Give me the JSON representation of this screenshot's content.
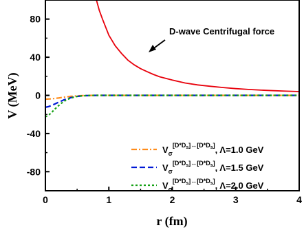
{
  "chart_data": {
    "type": "line",
    "xlabel": "r (fm)",
    "ylabel": "V (MeV)",
    "xlim": [
      0,
      4
    ],
    "ylim": [
      -100,
      100
    ],
    "x_ticks": [
      "0",
      "1",
      "2",
      "3",
      "4"
    ],
    "y_ticks": [
      "-80",
      "-40",
      "0",
      "40",
      "80"
    ],
    "y_tick_values": [
      -80,
      -40,
      0,
      40,
      80
    ],
    "grid": false,
    "legend_position": "bottom-right",
    "annotation": {
      "text": "D-wave Centrifugal force",
      "x": 1.6,
      "y": 47
    },
    "series": [
      {
        "name": "D-wave Centrifugal force",
        "color": "#e8000b",
        "dash": "solid",
        "x": [
          0.8,
          0.85,
          0.9,
          1.0,
          1.1,
          1.2,
          1.3,
          1.4,
          1.5,
          1.6,
          1.7,
          1.8,
          2.0,
          2.2,
          2.4,
          2.6,
          2.8,
          3.0,
          3.2,
          3.4,
          3.6,
          3.8,
          4.0
        ],
        "y": [
          101,
          89,
          80,
          63,
          52,
          44,
          37,
          32,
          28,
          25,
          22,
          19.5,
          16,
          13,
          11,
          9.5,
          8.2,
          7.1,
          6.2,
          5.5,
          4.9,
          4.4,
          4.0
        ]
      },
      {
        "name": "Λ=1.0 GeV",
        "legend_prefix": "V",
        "legend_sub": "σ",
        "legend_sup": "[D*D",
        "legend_sup_sub": "s",
        "legend_sup2": "]↔[D*D",
        "legend_sup2_sub": "s",
        "legend_sup_end": "]",
        "legend_suffix": ", Λ=1.0 GeV",
        "color": "#ff8c1a",
        "dash": "dashdot",
        "x": [
          0,
          0.1,
          0.2,
          0.3,
          0.4,
          0.5,
          0.6,
          0.7,
          0.8,
          1.0,
          1.5,
          2.0,
          3.0,
          4.0
        ],
        "y": [
          -4.0,
          -3.6,
          -2.8,
          -1.8,
          -1.0,
          -0.5,
          -0.2,
          -0.1,
          0.0,
          0.0,
          0.0,
          0.0,
          0.0,
          0.0
        ]
      },
      {
        "name": "Λ=1.5 GeV",
        "legend_prefix": "V",
        "legend_sub": "σ",
        "legend_sup": "[D*D",
        "legend_sup_sub": "s",
        "legend_sup2": "]↔[D*D",
        "legend_sup2_sub": "s",
        "legend_sup_end": "]",
        "legend_suffix": ", Λ=1.5 GeV",
        "color": "#0019d6",
        "dash": "dash",
        "x": [
          0,
          0.05,
          0.1,
          0.15,
          0.2,
          0.25,
          0.3,
          0.4,
          0.5,
          0.6,
          0.7,
          0.8,
          1.0,
          1.5,
          2.0,
          3.0,
          4.0
        ],
        "y": [
          -12.5,
          -11.8,
          -10.5,
          -9.0,
          -7.4,
          -5.9,
          -4.5,
          -2.4,
          -1.1,
          -0.4,
          -0.1,
          0.0,
          0.0,
          0.0,
          0.0,
          0.0,
          0.0
        ]
      },
      {
        "name": "Λ=2.0 GeV",
        "legend_prefix": "V",
        "legend_sub": "σ",
        "legend_sup": "[D*D",
        "legend_sup_sub": "s",
        "legend_sup2": "]↔[D*D",
        "legend_sup2_sub": "s",
        "legend_sup_end": "]",
        "legend_suffix": ", Λ=2.0 GeV",
        "color": "#14a014",
        "dash": "dot",
        "x": [
          0,
          0.05,
          0.1,
          0.15,
          0.2,
          0.25,
          0.3,
          0.35,
          0.4,
          0.5,
          0.6,
          0.7,
          0.8,
          1.0,
          1.5,
          2.0,
          3.0,
          4.0
        ],
        "y": [
          -22.5,
          -20.8,
          -17.8,
          -14.4,
          -11.2,
          -8.3,
          -6.0,
          -4.2,
          -2.8,
          -1.1,
          -0.4,
          -0.1,
          0.0,
          0.0,
          0.0,
          0.0,
          0.0,
          0.0
        ]
      }
    ]
  }
}
